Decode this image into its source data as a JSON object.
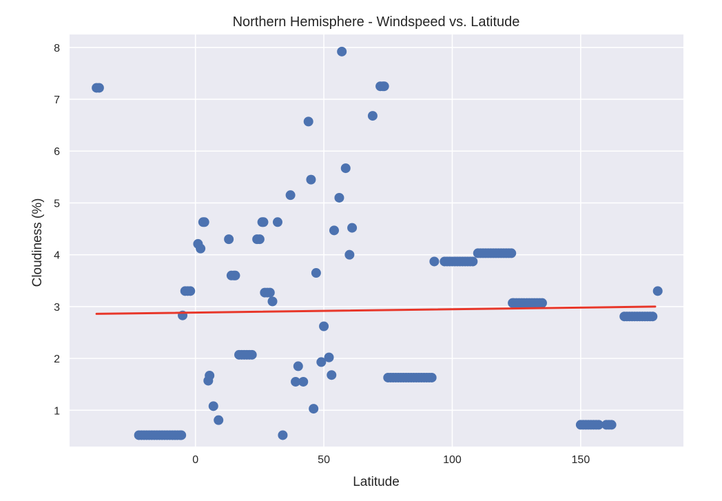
{
  "chart_data": {
    "type": "scatter",
    "title": "Northern Hemisphere - Windspeed vs. Latitude",
    "xlabel": "Latitude",
    "ylabel": "Cloudiness (%)",
    "xlim": [
      -49,
      190
    ],
    "ylim": [
      0.3,
      8.25
    ],
    "xticks": [
      0,
      50,
      100,
      150
    ],
    "yticks": [
      1,
      2,
      3,
      4,
      5,
      6,
      7,
      8
    ],
    "grid": true,
    "background": "#eaeaf2",
    "point_color": "#4c72b0",
    "line_color": "#e8372a",
    "points": [
      [
        -38.5,
        7.22
      ],
      [
        -37.5,
        7.22
      ],
      [
        -22,
        0.52
      ],
      [
        -21,
        0.52
      ],
      [
        -20,
        0.52
      ],
      [
        -19,
        0.52
      ],
      [
        -18,
        0.52
      ],
      [
        -17,
        0.52
      ],
      [
        -16,
        0.52
      ],
      [
        -15,
        0.52
      ],
      [
        -14,
        0.52
      ],
      [
        -13,
        0.52
      ],
      [
        -12,
        0.52
      ],
      [
        -11,
        0.52
      ],
      [
        -10,
        0.52
      ],
      [
        -9,
        0.52
      ],
      [
        -8,
        0.52
      ],
      [
        -7,
        0.52
      ],
      [
        -6,
        0.52
      ],
      [
        -5.5,
        0.52
      ],
      [
        -5,
        2.83
      ],
      [
        -4,
        3.3
      ],
      [
        -3,
        3.3
      ],
      [
        -2,
        3.3
      ],
      [
        1,
        4.21
      ],
      [
        2,
        4.12
      ],
      [
        3,
        4.63
      ],
      [
        3.5,
        4.63
      ],
      [
        5,
        1.57
      ],
      [
        5.5,
        1.67
      ],
      [
        7,
        1.08
      ],
      [
        9,
        0.81
      ],
      [
        13,
        4.3
      ],
      [
        14,
        3.6
      ],
      [
        15,
        3.6
      ],
      [
        15.5,
        3.6
      ],
      [
        17,
        2.07
      ],
      [
        18,
        2.07
      ],
      [
        19,
        2.07
      ],
      [
        20,
        2.07
      ],
      [
        21,
        2.07
      ],
      [
        22,
        2.07
      ],
      [
        24,
        4.3
      ],
      [
        25,
        4.3
      ],
      [
        26,
        4.63
      ],
      [
        26.5,
        4.63
      ],
      [
        27,
        3.27
      ],
      [
        28,
        3.27
      ],
      [
        29,
        3.27
      ],
      [
        30,
        3.1
      ],
      [
        32,
        4.63
      ],
      [
        34,
        0.52
      ],
      [
        37,
        5.15
      ],
      [
        39,
        1.55
      ],
      [
        40,
        1.85
      ],
      [
        42,
        1.55
      ],
      [
        44,
        6.57
      ],
      [
        45,
        5.45
      ],
      [
        46,
        1.03
      ],
      [
        47,
        3.65
      ],
      [
        49,
        1.93
      ],
      [
        50,
        2.62
      ],
      [
        52,
        2.02
      ],
      [
        53,
        1.68
      ],
      [
        54,
        4.47
      ],
      [
        56,
        5.1
      ],
      [
        57,
        7.92
      ],
      [
        58.5,
        5.67
      ],
      [
        60,
        4.0
      ],
      [
        61,
        4.52
      ],
      [
        69,
        6.68
      ],
      [
        72,
        7.25
      ],
      [
        73,
        7.25
      ],
      [
        73.5,
        7.25
      ],
      [
        75,
        1.63
      ],
      [
        76,
        1.63
      ],
      [
        77,
        1.63
      ],
      [
        78,
        1.63
      ],
      [
        79,
        1.63
      ],
      [
        80,
        1.63
      ],
      [
        81,
        1.63
      ],
      [
        82,
        1.63
      ],
      [
        83,
        1.63
      ],
      [
        84,
        1.63
      ],
      [
        85,
        1.63
      ],
      [
        86,
        1.63
      ],
      [
        87,
        1.63
      ],
      [
        88,
        1.63
      ],
      [
        89,
        1.63
      ],
      [
        90,
        1.63
      ],
      [
        91,
        1.63
      ],
      [
        92,
        1.63
      ],
      [
        93,
        3.87
      ],
      [
        97,
        3.87
      ],
      [
        98,
        3.87
      ],
      [
        99,
        3.87
      ],
      [
        100,
        3.87
      ],
      [
        101,
        3.87
      ],
      [
        102,
        3.87
      ],
      [
        103,
        3.87
      ],
      [
        104,
        3.87
      ],
      [
        105,
        3.87
      ],
      [
        106,
        3.87
      ],
      [
        107,
        3.87
      ],
      [
        108,
        3.87
      ],
      [
        110,
        4.03
      ],
      [
        111,
        4.03
      ],
      [
        112,
        4.03
      ],
      [
        113,
        4.03
      ],
      [
        114,
        4.03
      ],
      [
        115,
        4.03
      ],
      [
        116,
        4.03
      ],
      [
        117,
        4.03
      ],
      [
        118,
        4.03
      ],
      [
        119,
        4.03
      ],
      [
        120,
        4.03
      ],
      [
        121,
        4.03
      ],
      [
        122,
        4.03
      ],
      [
        123,
        4.03
      ],
      [
        123.5,
        3.07
      ],
      [
        124,
        3.07
      ],
      [
        125,
        3.07
      ],
      [
        126,
        3.07
      ],
      [
        127,
        3.07
      ],
      [
        128,
        3.07
      ],
      [
        129,
        3.07
      ],
      [
        130,
        3.07
      ],
      [
        131,
        3.07
      ],
      [
        132,
        3.07
      ],
      [
        133,
        3.07
      ],
      [
        134,
        3.07
      ],
      [
        135,
        3.07
      ],
      [
        150,
        0.72
      ],
      [
        151,
        0.72
      ],
      [
        152,
        0.72
      ],
      [
        153,
        0.72
      ],
      [
        154,
        0.72
      ],
      [
        155,
        0.72
      ],
      [
        156,
        0.72
      ],
      [
        157,
        0.72
      ],
      [
        160,
        0.72
      ],
      [
        161,
        0.72
      ],
      [
        162,
        0.72
      ],
      [
        167,
        2.81
      ],
      [
        168,
        2.81
      ],
      [
        169,
        2.81
      ],
      [
        170,
        2.81
      ],
      [
        171,
        2.81
      ],
      [
        172,
        2.81
      ],
      [
        173,
        2.81
      ],
      [
        174,
        2.81
      ],
      [
        175,
        2.81
      ],
      [
        176,
        2.81
      ],
      [
        177,
        2.81
      ],
      [
        178,
        2.81
      ],
      [
        180,
        3.3
      ]
    ],
    "regression": {
      "x": [
        -38.5,
        179
      ],
      "y": [
        2.86,
        3.0
      ]
    }
  }
}
